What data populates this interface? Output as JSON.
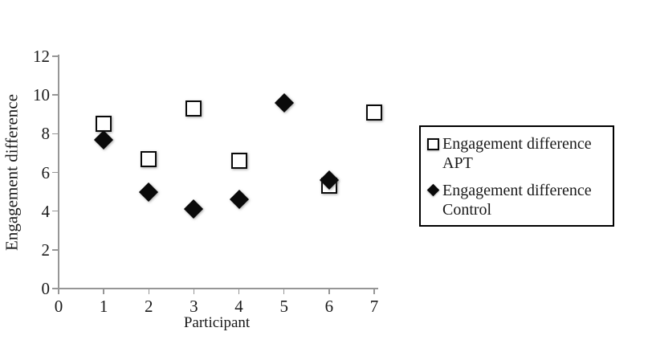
{
  "figure": {
    "background": "#ffffff",
    "text_color": "#1a1a1a",
    "axis_color": "#969696"
  },
  "chart_data": {
    "type": "scatter",
    "title": "",
    "xlabel": "Participant",
    "ylabel": "Engagement difference",
    "xlim": [
      0,
      7
    ],
    "ylim": [
      0,
      12
    ],
    "xticks": [
      0,
      1,
      2,
      3,
      4,
      5,
      6,
      7
    ],
    "yticks": [
      0,
      2,
      4,
      6,
      8,
      10,
      12
    ],
    "grid": false,
    "legend_position": "right-outside",
    "x": [
      1,
      2,
      3,
      4,
      5,
      6,
      7
    ],
    "series": [
      {
        "name": "Engagement difference APT",
        "legend_line1": "Engagement difference",
        "legend_line2": "APT",
        "marker": "open-square",
        "color": "#000000",
        "values": [
          8.5,
          6.7,
          9.3,
          6.6,
          null,
          5.3,
          9.1
        ]
      },
      {
        "name": "Engagement difference Control",
        "legend_line1": "Engagement difference",
        "legend_line2": "Control",
        "marker": "filled-diamond",
        "color": "#000000",
        "values": [
          7.7,
          5.0,
          4.1,
          4.6,
          9.6,
          5.6,
          null
        ]
      }
    ]
  }
}
